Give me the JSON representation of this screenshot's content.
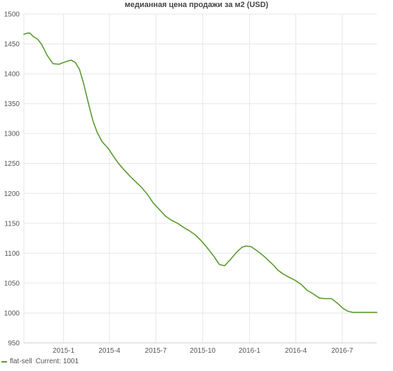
{
  "chart_data": {
    "type": "line",
    "title": "медианная цена продажи за м2 (USD)",
    "xlabel": "",
    "ylabel": "",
    "x_start": "2014-10-15",
    "x_end": "2016-09-07",
    "x_ticks": [
      {
        "date": "2015-01-01",
        "label": "2015-1"
      },
      {
        "date": "2015-04-01",
        "label": "2015-4"
      },
      {
        "date": "2015-07-01",
        "label": "2015-7"
      },
      {
        "date": "2015-10-01",
        "label": "2015-10"
      },
      {
        "date": "2016-01-01",
        "label": "2016-1"
      },
      {
        "date": "2016-04-01",
        "label": "2016-4"
      },
      {
        "date": "2016-07-01",
        "label": "2016-7"
      }
    ],
    "ylim": [
      950,
      1500
    ],
    "y_ticks": [
      950,
      1000,
      1050,
      1100,
      1150,
      1200,
      1250,
      1300,
      1350,
      1400,
      1450,
      1500
    ],
    "grid": true,
    "legend_position": "bottom-left",
    "series": [
      {
        "name": "flat-sell",
        "color": "#5a9b2f",
        "current_label": "Current:",
        "current_value": "1001",
        "x": [
          "2014-10-15",
          "2014-10-21",
          "2014-10-27",
          "2014-11-03",
          "2014-11-11",
          "2014-11-19",
          "2014-11-29",
          "2014-12-11",
          "2014-12-23",
          "2015-01-01",
          "2015-01-08",
          "2015-01-16",
          "2015-01-24",
          "2015-02-01",
          "2015-02-09",
          "2015-02-17",
          "2015-02-27",
          "2015-03-08",
          "2015-03-18",
          "2015-03-30",
          "2015-04-09",
          "2015-04-19",
          "2015-04-29",
          "2015-05-11",
          "2015-05-23",
          "2015-06-02",
          "2015-06-14",
          "2015-06-26",
          "2015-07-08",
          "2015-07-20",
          "2015-08-01",
          "2015-08-13",
          "2015-08-25",
          "2015-09-04",
          "2015-09-16",
          "2015-09-28",
          "2015-10-10",
          "2015-10-22",
          "2015-11-03",
          "2015-11-13",
          "2015-11-25",
          "2015-12-07",
          "2015-12-17",
          "2015-12-25",
          "2016-01-04",
          "2016-01-16",
          "2016-01-28",
          "2016-02-07",
          "2016-02-17",
          "2016-02-25",
          "2016-03-06",
          "2016-03-18",
          "2016-03-30",
          "2016-04-11",
          "2016-04-23",
          "2016-05-05",
          "2016-05-17",
          "2016-05-29",
          "2016-06-10",
          "2016-06-22",
          "2016-07-02",
          "2016-07-12",
          "2016-07-22",
          "2016-08-01",
          "2016-08-11",
          "2016-08-21",
          "2016-08-29",
          "2016-09-07"
        ],
        "values": [
          1466,
          1468,
          1468,
          1462,
          1458,
          1449,
          1432,
          1417,
          1416,
          1419,
          1421,
          1423,
          1419,
          1408,
          1385,
          1357,
          1323,
          1302,
          1286,
          1275,
          1262,
          1250,
          1240,
          1229,
          1219,
          1211,
          1199,
          1184,
          1173,
          1162,
          1155,
          1150,
          1143,
          1138,
          1131,
          1121,
          1109,
          1096,
          1081,
          1079,
          1090,
          1102,
          1110,
          1112,
          1111,
          1104,
          1096,
          1088,
          1080,
          1072,
          1066,
          1060,
          1055,
          1048,
          1038,
          1032,
          1025,
          1024,
          1024,
          1016,
          1008,
          1003,
          1001,
          1001,
          1001,
          1001,
          1001,
          1001
        ]
      }
    ]
  }
}
